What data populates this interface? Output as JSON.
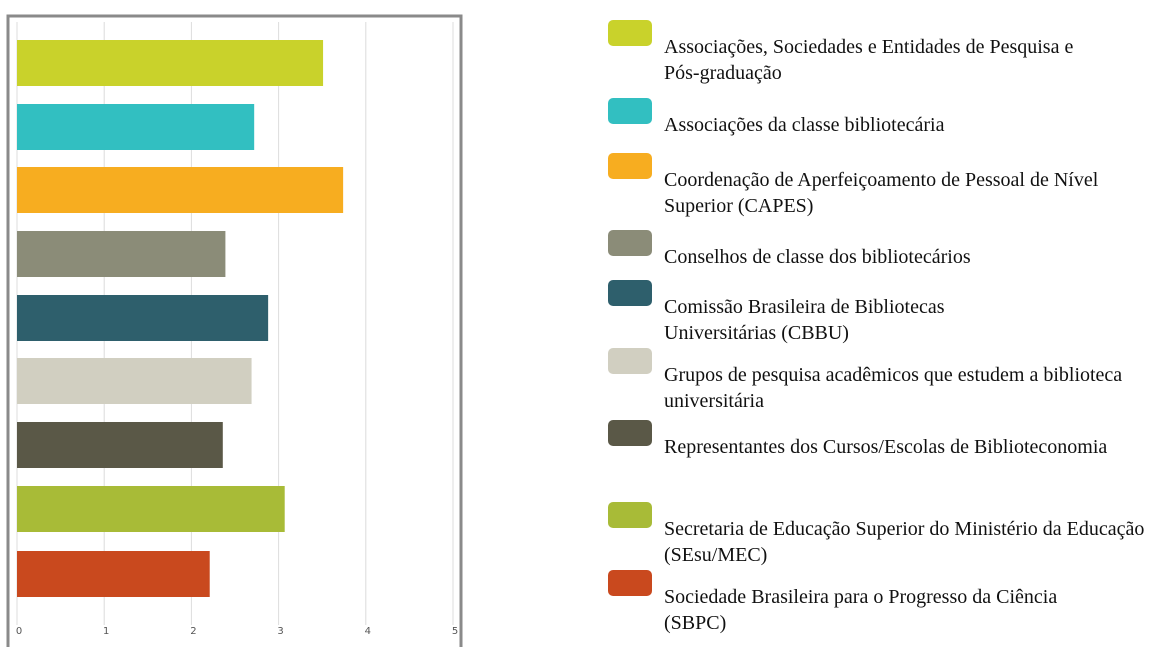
{
  "chart_data": {
    "type": "barh",
    "categories": [
      "Associações, Sociedades e Entidades de Pesquisa e Pós-graduação",
      "Associações da classe bibliotecária",
      "Coordenação de Aperfeiçoamento de Pessoal de Nível Superior (CAPES)",
      "Conselhos de classe dos bibliotecários",
      "Comissão Brasileira de Bibliotecas Universitárias (CBBU)",
      "Grupos de pesquisa acadêmicos que estudem a biblioteca universitária",
      "Representantes dos Cursos/Escolas de Biblioteconomia",
      "Secretaria de Educação Superior do Ministério da Educação (SEsu/MEC)",
      "Sociedade Brasileira para o Progresso da Ciência (SBPC)"
    ],
    "values": [
      3.51,
      2.72,
      3.74,
      2.39,
      2.88,
      2.69,
      2.36,
      3.07,
      2.21
    ],
    "colors": [
      "#c9d22b",
      "#32bfc1",
      "#f7ad20",
      "#8b8c78",
      "#2e5f6c",
      "#d1cfc1",
      "#5a5847",
      "#a8bb37",
      "#c9491e"
    ],
    "xlim": [
      0,
      5
    ],
    "xticks": [
      0,
      1,
      2,
      3,
      4,
      5
    ],
    "grid": true
  }
}
